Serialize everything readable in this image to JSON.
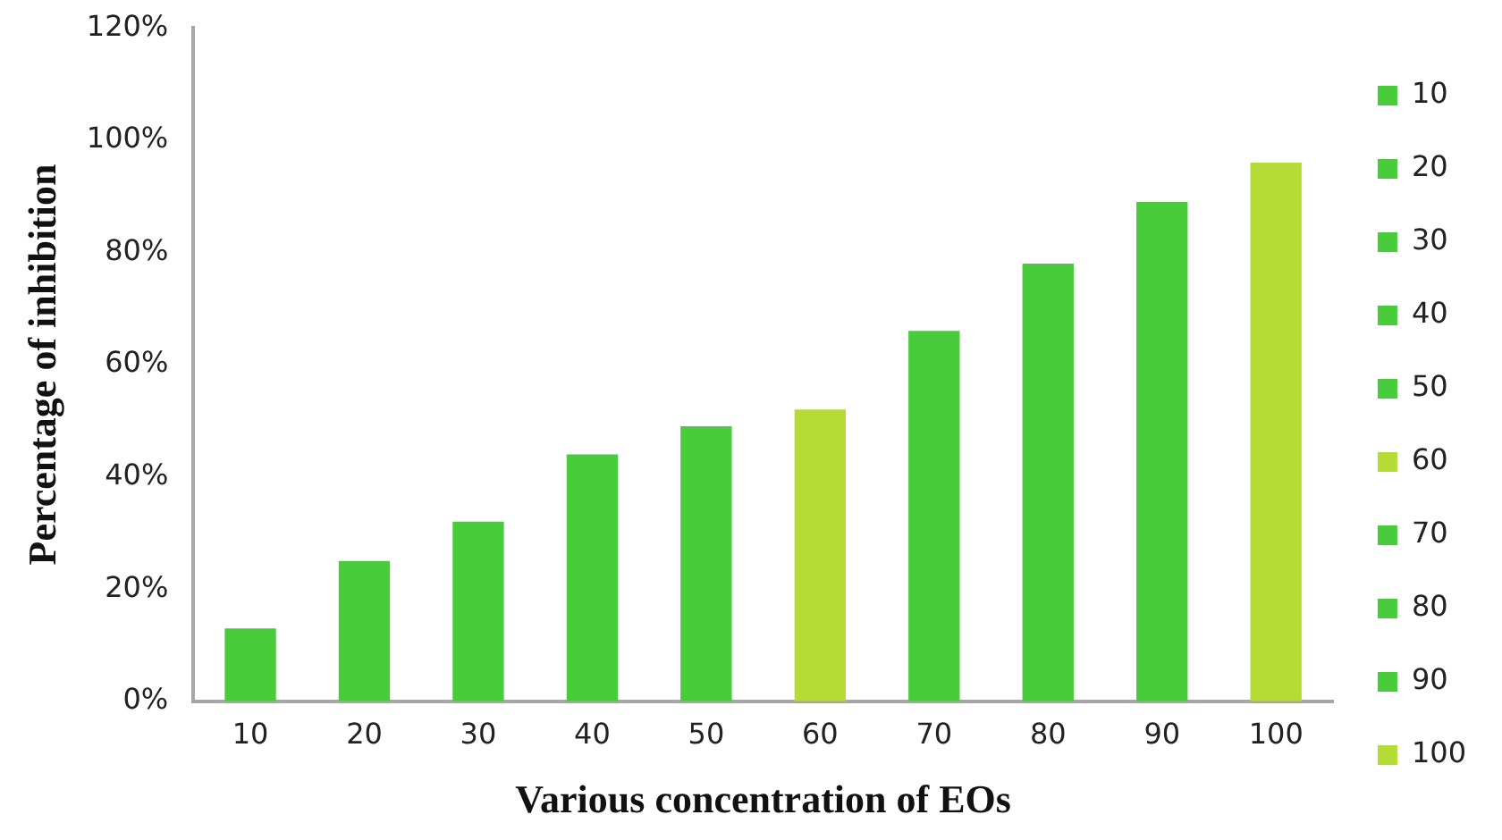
{
  "chart_data": {
    "type": "bar",
    "xlabel": "Various concentration of EOs",
    "ylabel": "Percentage of inhibition",
    "categories": [
      "10",
      "20",
      "30",
      "40",
      "50",
      "60",
      "70",
      "80",
      "90",
      "100"
    ],
    "series": [
      {
        "name": "10",
        "color": "#48cc3c",
        "values": [
          13,
          null,
          null,
          null,
          null,
          null,
          null,
          null,
          null,
          null
        ]
      },
      {
        "name": "20",
        "color": "#48cc3c",
        "values": [
          null,
          25,
          null,
          null,
          null,
          null,
          null,
          null,
          null,
          null
        ]
      },
      {
        "name": "30",
        "color": "#48cc3c",
        "values": [
          null,
          null,
          32,
          null,
          null,
          null,
          null,
          null,
          null,
          null
        ]
      },
      {
        "name": "40",
        "color": "#48cc3c",
        "values": [
          null,
          null,
          null,
          44,
          null,
          null,
          null,
          null,
          null,
          null
        ]
      },
      {
        "name": "50",
        "color": "#48cc3c",
        "values": [
          null,
          null,
          null,
          null,
          49,
          null,
          null,
          null,
          null,
          null
        ]
      },
      {
        "name": "60",
        "color": "#b4dc34",
        "values": [
          null,
          null,
          null,
          null,
          null,
          52,
          null,
          null,
          null,
          null
        ]
      },
      {
        "name": "70",
        "color": "#48cc3c",
        "values": [
          null,
          null,
          null,
          null,
          null,
          null,
          66,
          null,
          null,
          null
        ]
      },
      {
        "name": "80",
        "color": "#48cc3c",
        "values": [
          null,
          null,
          null,
          null,
          null,
          null,
          null,
          78,
          null,
          null
        ]
      },
      {
        "name": "90",
        "color": "#48cc3c",
        "values": [
          null,
          null,
          null,
          null,
          null,
          null,
          null,
          null,
          89,
          null
        ]
      },
      {
        "name": "100",
        "color": "#b4dc34",
        "values": [
          null,
          null,
          null,
          null,
          null,
          null,
          null,
          null,
          null,
          96
        ]
      }
    ],
    "ylim": [
      0,
      120
    ],
    "yticks": [
      {
        "value": 0,
        "label": "0%"
      },
      {
        "value": 20,
        "label": "20%"
      },
      {
        "value": 40,
        "label": "40%"
      },
      {
        "value": 60,
        "label": "60%"
      },
      {
        "value": 80,
        "label": "80%"
      },
      {
        "value": 100,
        "label": "100%"
      },
      {
        "value": 120,
        "label": "120%"
      }
    ],
    "grid": false,
    "legend": "right"
  }
}
